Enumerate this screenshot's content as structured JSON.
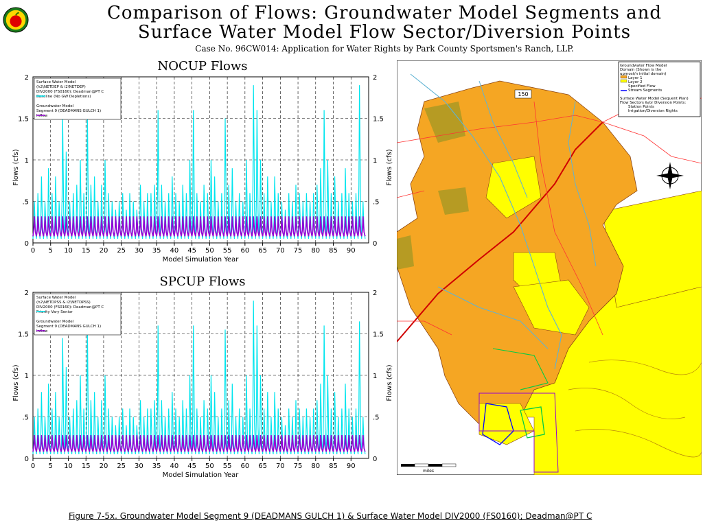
{
  "header": {
    "title_line1": "Comparison of Flows: Groundwater Model Segments and",
    "title_line2": "Surface Water Model Flow Sector/Diversion Points",
    "subtitle": "Case No. 96CW014: Application for Water Rights by Park County Sportsmen's Ranch, LLP."
  },
  "logo": {
    "icon": "apple-icon"
  },
  "charts": [
    {
      "title": "NOCUP Flows",
      "legend": [
        "Surface Water Model",
        "(h2\\NETDEP & i2\\NETDEP)",
        "DIV2000 (FS0160): Deadman@PT C",
        "Baseline (No GW Depletions)",
        "",
        "Groundwater Model",
        "Segment 9 (DEADMANS GULCH 1)",
        "Inflow"
      ]
    },
    {
      "title": "SPCUP Flows",
      "legend": [
        "Surface Water Model",
        "(h2\\NETDPSS & i2\\NETDPSS)",
        "DIV2000 (FS0160): Deadman@PT C",
        "Priority Vary Senior",
        "",
        "Groundwater Model",
        "Segment 9 (DEADMANS GULCH 1)",
        "Inflow"
      ]
    }
  ],
  "chart_data": [
    {
      "type": "line",
      "title": "NOCUP Flows",
      "xlabel": "Model Simulation Year",
      "ylabel": "Flows (cfs)",
      "xlim": [
        0,
        95
      ],
      "ylim": [
        0,
        2
      ],
      "x_ticks": [
        "0",
        "5",
        "10",
        "15",
        "20",
        "25",
        "30",
        "35",
        "40",
        "45",
        "50",
        "55",
        "60",
        "65",
        "70",
        "75",
        "80",
        "85",
        "90"
      ],
      "y_ticks": [
        "0",
        ".5",
        "1",
        "1.5",
        "2"
      ],
      "grid": true,
      "legend_position": "top-left",
      "series": [
        {
          "name": "Baseline (No GW Depletions)",
          "color": "#00e5ee",
          "annual_peaks": [
            0.5,
            0.6,
            0.8,
            0.5,
            0.9,
            0.6,
            0.8,
            0.5,
            1.55,
            1.1,
            0.5,
            0.6,
            0.7,
            1.0,
            0.6,
            1.6,
            0.7,
            0.8,
            0.5,
            0.7,
            1.0,
            0.6,
            0.5,
            0.4,
            0.5,
            0.6,
            0.4,
            0.6,
            0.5,
            0.4,
            0.7,
            0.5,
            0.6,
            0.6,
            0.7,
            1.6,
            0.7,
            0.5,
            0.6,
            0.8,
            0.6,
            0.5,
            0.7,
            0.6,
            1.0,
            1.6,
            0.6,
            0.5,
            0.7,
            0.6,
            1.0,
            0.8,
            0.5,
            0.6,
            1.5,
            0.7,
            0.9,
            0.5,
            0.6,
            0.5,
            1.0,
            0.6,
            1.9,
            1.6,
            1.0,
            0.6,
            0.8,
            0.5,
            0.8,
            0.6,
            0.5,
            0.4,
            0.6,
            0.5,
            0.7,
            0.6,
            0.5,
            0.6,
            0.5,
            0.6,
            0.7,
            0.9,
            1.6,
            1.0,
            0.6,
            0.8,
            0.5,
            0.6,
            0.9,
            0.6,
            0.5,
            0.6,
            1.9,
            0.5
          ]
        },
        {
          "name": "Inflow",
          "color": "#9400d3",
          "annual_peaks": [
            0.32,
            0.32,
            0.32,
            0.32,
            0.32,
            0.32,
            0.32,
            0.32,
            0.32,
            0.32,
            0.32,
            0.32,
            0.32,
            0.32,
            0.32,
            0.32,
            0.32,
            0.32,
            0.32,
            0.32,
            0.32,
            0.32,
            0.32,
            0.32,
            0.32,
            0.32,
            0.32,
            0.32,
            0.32,
            0.32,
            0.32,
            0.32,
            0.32,
            0.32,
            0.32,
            0.32,
            0.32,
            0.32,
            0.32,
            0.32,
            0.32,
            0.32,
            0.32,
            0.32,
            0.32,
            0.32,
            0.32,
            0.32,
            0.32,
            0.32,
            0.32,
            0.32,
            0.32,
            0.32,
            0.32,
            0.32,
            0.32,
            0.32,
            0.32,
            0.32,
            0.32,
            0.32,
            0.32,
            0.32,
            0.32,
            0.32,
            0.32,
            0.32,
            0.32,
            0.32,
            0.32,
            0.32,
            0.32,
            0.32,
            0.32,
            0.32,
            0.32,
            0.32,
            0.32,
            0.32,
            0.32,
            0.32,
            0.32,
            0.32,
            0.32,
            0.32,
            0.32,
            0.32,
            0.32,
            0.32,
            0.32,
            0.32,
            0.32,
            0.32
          ],
          "annual_low": 0.08
        }
      ]
    },
    {
      "type": "line",
      "title": "SPCUP Flows",
      "xlabel": "Model Simulation Year",
      "ylabel": "Flows (cfs)",
      "xlim": [
        0,
        95
      ],
      "ylim": [
        0,
        2
      ],
      "x_ticks": [
        "0",
        "5",
        "10",
        "15",
        "20",
        "25",
        "30",
        "35",
        "40",
        "45",
        "50",
        "55",
        "60",
        "65",
        "70",
        "75",
        "80",
        "85",
        "90"
      ],
      "y_ticks": [
        "0",
        ".5",
        "1",
        "1.5",
        "2"
      ],
      "grid": true,
      "legend_position": "top-left",
      "series": [
        {
          "name": "Priority Vary Senior",
          "color": "#00e5ee",
          "annual_peaks": [
            0.5,
            0.6,
            0.8,
            0.5,
            0.9,
            0.6,
            0.8,
            0.5,
            1.45,
            1.1,
            0.5,
            0.6,
            0.7,
            1.0,
            0.6,
            1.6,
            0.7,
            0.8,
            0.5,
            0.7,
            1.0,
            0.6,
            0.5,
            0.4,
            0.5,
            0.6,
            0.4,
            0.6,
            0.5,
            0.4,
            0.7,
            0.5,
            0.6,
            0.6,
            0.7,
            1.6,
            0.7,
            0.5,
            0.6,
            0.8,
            0.6,
            0.5,
            0.7,
            0.6,
            1.0,
            1.6,
            0.6,
            0.5,
            0.7,
            0.6,
            1.0,
            0.8,
            0.5,
            0.6,
            1.55,
            0.7,
            0.9,
            0.5,
            0.6,
            0.5,
            1.0,
            0.6,
            1.9,
            1.6,
            1.0,
            0.6,
            0.8,
            0.5,
            0.8,
            0.6,
            0.5,
            0.4,
            0.6,
            0.5,
            0.7,
            0.6,
            0.5,
            0.6,
            0.5,
            0.6,
            0.7,
            0.9,
            1.6,
            1.0,
            0.6,
            0.8,
            0.5,
            0.6,
            0.9,
            0.6,
            0.5,
            0.6,
            1.65,
            0.5
          ]
        },
        {
          "name": "Inflow",
          "color": "#9400d3",
          "annual_peaks": [
            0.28,
            0.28,
            0.28,
            0.28,
            0.28,
            0.28,
            0.28,
            0.28,
            0.28,
            0.28,
            0.28,
            0.28,
            0.28,
            0.28,
            0.28,
            0.28,
            0.28,
            0.28,
            0.28,
            0.28,
            0.28,
            0.28,
            0.28,
            0.28,
            0.28,
            0.28,
            0.28,
            0.28,
            0.28,
            0.28,
            0.28,
            0.28,
            0.28,
            0.28,
            0.28,
            0.28,
            0.28,
            0.28,
            0.28,
            0.28,
            0.28,
            0.28,
            0.28,
            0.28,
            0.28,
            0.28,
            0.28,
            0.28,
            0.28,
            0.28,
            0.28,
            0.28,
            0.28,
            0.28,
            0.28,
            0.28,
            0.28,
            0.28,
            0.28,
            0.28,
            0.28,
            0.28,
            0.28,
            0.28,
            0.28,
            0.28,
            0.28,
            0.28,
            0.28,
            0.28,
            0.28,
            0.28,
            0.28,
            0.28,
            0.28,
            0.28,
            0.28,
            0.28,
            0.28,
            0.28,
            0.28,
            0.28,
            0.28,
            0.28,
            0.28,
            0.28,
            0.28,
            0.28,
            0.28,
            0.28,
            0.28,
            0.28,
            0.28,
            0.28
          ],
          "annual_low": 0.08
        }
      ]
    }
  ],
  "map": {
    "legend": [
      "Groundwater Flow Model",
      "Domain (Shown is the",
      "upmost/n initial domain)",
      "Layer 1",
      "Layer 2",
      "Specified Flow",
      "Stream Segments",
      "",
      "Surface Water Model (Sequent Plan)",
      "Flow Sectors &/or Diversion Points:",
      "Station Points",
      "Irrigation/Diversion Rights"
    ],
    "label_150": "150",
    "scale_text": "miles",
    "colors": {
      "layer1": "#f5a623",
      "layer2": "#ffff00",
      "stream": "#0000ff",
      "road": "#ff0000"
    },
    "icon": "compass-rose-icon"
  },
  "footer": {
    "caption": "Figure 7-5x. Groundwater Model Segment 9 (DEADMANS GULCH 1) & Surface Water Model DIV2000 (FS0160); Deadman@PT C"
  }
}
